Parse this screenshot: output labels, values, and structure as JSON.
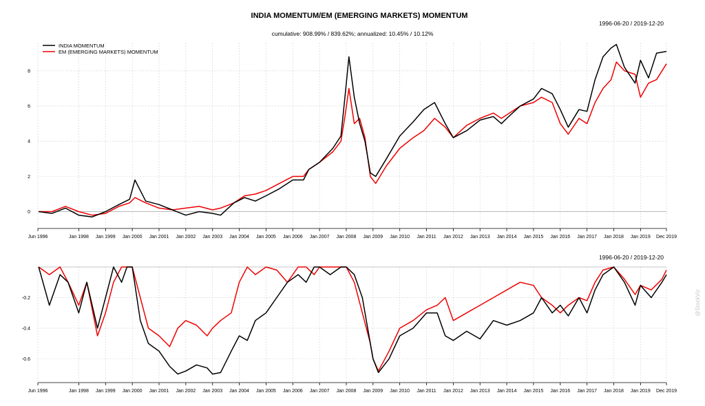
{
  "colors": {
    "india": "#000000",
    "em": "#ee0000",
    "zero_line": "#b0b0b0",
    "grid": "#cfcfcf"
  },
  "watermark": "@StockViz",
  "chart_data": [
    {
      "type": "line",
      "title": "INDIA MOMENTUM/EM (EMERGING MARKETS) MOMENTUM",
      "date_range": "1996-06-20 / 2019-12-20",
      "subtitle": "cumulative: 908.99% / 839.62%; annualized: 10.45% / 10.12%",
      "legend_position": "top-left",
      "x_ticks": [
        "Jun 1996",
        "Jan 1998",
        "Jan 1999",
        "Jan 2000",
        "Jan 2001",
        "Jan 2002",
        "Jan 2003",
        "Jan 2004",
        "Jan 2005",
        "Jan 2006",
        "Jan 2007",
        "Jan 2008",
        "Jan 2009",
        "Jan 2010",
        "Jan 2011",
        "Jan 2012",
        "Jan 2013",
        "Jan 2014",
        "Jan 2015",
        "Jan 2016",
        "Jan 2017",
        "Jan 2018",
        "Jan 2019",
        "Dec 2019"
      ],
      "y_ticks": [
        "0",
        "2",
        "4",
        "6",
        "8"
      ],
      "ylim": [
        -0.8,
        9.6
      ],
      "grid": true,
      "x": [
        1996.5,
        1997.0,
        1997.5,
        1998.0,
        1998.5,
        1999.0,
        1999.5,
        1999.9,
        2000.1,
        2000.5,
        2001.0,
        2001.5,
        2002.0,
        2002.5,
        2003.0,
        2003.3,
        2003.8,
        2004.2,
        2004.6,
        2005.0,
        2005.5,
        2006.0,
        2006.4,
        2006.6,
        2007.0,
        2007.5,
        2007.8,
        2007.95,
        2008.1,
        2008.3,
        2008.5,
        2008.7,
        2008.9,
        2009.1,
        2009.5,
        2010.0,
        2010.5,
        2010.9,
        2011.3,
        2011.7,
        2012.0,
        2012.5,
        2013.0,
        2013.5,
        2013.8,
        2014.0,
        2014.5,
        2015.0,
        2015.3,
        2015.7,
        2016.0,
        2016.3,
        2016.7,
        2017.0,
        2017.3,
        2017.6,
        2017.9,
        2018.1,
        2018.4,
        2018.8,
        2019.0,
        2019.3,
        2019.6,
        2019.97
      ],
      "series": [
        {
          "name": "INDIA MOMENTUM",
          "values": [
            0.0,
            -0.1,
            0.2,
            -0.2,
            -0.3,
            0.0,
            0.4,
            0.7,
            1.8,
            0.6,
            0.4,
            0.1,
            -0.2,
            0.0,
            -0.1,
            -0.2,
            0.5,
            0.8,
            0.6,
            0.9,
            1.3,
            1.8,
            1.8,
            2.4,
            2.8,
            3.6,
            4.3,
            6.5,
            8.8,
            6.5,
            5.0,
            4.0,
            2.2,
            2.0,
            3.0,
            4.3,
            5.1,
            5.8,
            6.2,
            5.0,
            4.2,
            4.6,
            5.2,
            5.4,
            5.0,
            5.3,
            6.0,
            6.4,
            7.0,
            6.7,
            5.8,
            4.8,
            5.8,
            5.7,
            7.5,
            8.8,
            9.3,
            9.5,
            8.2,
            7.3,
            8.6,
            7.6,
            9.0,
            9.1
          ]
        },
        {
          "name": "EM (EMERGING MARKETS) MOMENTUM",
          "values": [
            0.0,
            0.0,
            0.3,
            0.0,
            -0.2,
            -0.1,
            0.3,
            0.5,
            0.8,
            0.5,
            0.2,
            0.1,
            0.2,
            0.3,
            0.1,
            0.2,
            0.5,
            0.9,
            1.0,
            1.2,
            1.6,
            2.0,
            2.0,
            2.4,
            2.8,
            3.4,
            4.0,
            5.4,
            7.0,
            5.0,
            5.3,
            4.2,
            2.0,
            1.6,
            2.6,
            3.6,
            4.2,
            4.6,
            5.3,
            4.8,
            4.2,
            4.9,
            5.3,
            5.6,
            5.3,
            5.5,
            6.0,
            6.2,
            6.5,
            6.2,
            5.0,
            4.4,
            5.3,
            5.0,
            6.2,
            7.0,
            7.5,
            8.5,
            8.0,
            7.8,
            6.5,
            7.3,
            7.5,
            8.4
          ]
        }
      ]
    },
    {
      "type": "line",
      "title": "",
      "date_range": "1996-06-20 / 2019-12-20",
      "x_ticks": [
        "Jun 1996",
        "Jan 1998",
        "Jan 1999",
        "Jan 2000",
        "Jan 2001",
        "Jan 2002",
        "Jan 2003",
        "Jan 2004",
        "Jan 2005",
        "Jan 2006",
        "Jan 2007",
        "Jan 2008",
        "Jan 2009",
        "Jan 2010",
        "Jan 2011",
        "Jan 2012",
        "Jan 2013",
        "Jan 2014",
        "Jan 2015",
        "Jan 2016",
        "Jan 2017",
        "Jan 2018",
        "Jan 2019",
        "Dec 2019"
      ],
      "y_ticks": [
        "-0.2",
        "-0.4",
        "-0.6"
      ],
      "ylim": [
        -0.74,
        0.0
      ],
      "grid": true,
      "x": [
        1996.5,
        1996.9,
        1997.3,
        1997.6,
        1998.0,
        1998.3,
        1998.7,
        1999.0,
        1999.3,
        1999.6,
        1999.8,
        2000.0,
        2000.3,
        2000.6,
        2001.0,
        2001.4,
        2001.7,
        2002.0,
        2002.4,
        2002.8,
        2003.0,
        2003.3,
        2003.7,
        2004.0,
        2004.3,
        2004.6,
        2005.0,
        2005.4,
        2005.8,
        2006.2,
        2006.5,
        2006.8,
        2007.0,
        2007.4,
        2007.8,
        2008.0,
        2008.3,
        2008.6,
        2008.9,
        2009.0,
        2009.2,
        2009.6,
        2010.0,
        2010.5,
        2011.0,
        2011.4,
        2011.7,
        2012.0,
        2012.5,
        2013.0,
        2013.5,
        2014.0,
        2014.5,
        2015.0,
        2015.3,
        2015.7,
        2016.0,
        2016.3,
        2016.7,
        2017.0,
        2017.3,
        2017.6,
        2018.0,
        2018.4,
        2018.8,
        2019.0,
        2019.4,
        2019.8,
        2019.97
      ],
      "series": [
        {
          "name": "INDIA MOMENTUM",
          "values": [
            0.0,
            -0.25,
            -0.05,
            -0.1,
            -0.3,
            -0.1,
            -0.4,
            -0.2,
            0.0,
            -0.1,
            0.0,
            0.0,
            -0.35,
            -0.5,
            -0.55,
            -0.65,
            -0.7,
            -0.68,
            -0.64,
            -0.66,
            -0.7,
            -0.69,
            -0.55,
            -0.45,
            -0.48,
            -0.35,
            -0.3,
            -0.2,
            -0.1,
            -0.05,
            -0.1,
            0.0,
            0.0,
            -0.05,
            0.0,
            0.0,
            -0.05,
            -0.2,
            -0.5,
            -0.6,
            -0.69,
            -0.6,
            -0.45,
            -0.4,
            -0.3,
            -0.3,
            -0.45,
            -0.48,
            -0.42,
            -0.47,
            -0.35,
            -0.38,
            -0.35,
            -0.3,
            -0.2,
            -0.3,
            -0.25,
            -0.32,
            -0.2,
            -0.3,
            -0.15,
            -0.05,
            0.0,
            -0.1,
            -0.25,
            -0.12,
            -0.2,
            -0.1,
            -0.05
          ]
        },
        {
          "name": "EM (EMERGING MARKETS) MOMENTUM",
          "values": [
            0.0,
            -0.05,
            0.0,
            -0.1,
            -0.25,
            -0.1,
            -0.45,
            -0.3,
            -0.1,
            0.0,
            0.0,
            0.0,
            -0.2,
            -0.4,
            -0.45,
            -0.52,
            -0.4,
            -0.35,
            -0.38,
            -0.45,
            -0.4,
            -0.35,
            -0.3,
            -0.1,
            0.0,
            -0.05,
            0.0,
            -0.02,
            -0.1,
            0.0,
            0.0,
            -0.05,
            0.0,
            0.0,
            0.0,
            0.0,
            -0.1,
            -0.3,
            -0.5,
            -0.6,
            -0.68,
            -0.55,
            -0.4,
            -0.35,
            -0.28,
            -0.25,
            -0.2,
            -0.35,
            -0.3,
            -0.25,
            -0.2,
            -0.15,
            -0.1,
            -0.12,
            -0.2,
            -0.25,
            -0.3,
            -0.25,
            -0.2,
            -0.22,
            -0.1,
            -0.02,
            0.0,
            -0.08,
            -0.18,
            -0.12,
            -0.15,
            -0.08,
            -0.02
          ]
        }
      ]
    }
  ]
}
